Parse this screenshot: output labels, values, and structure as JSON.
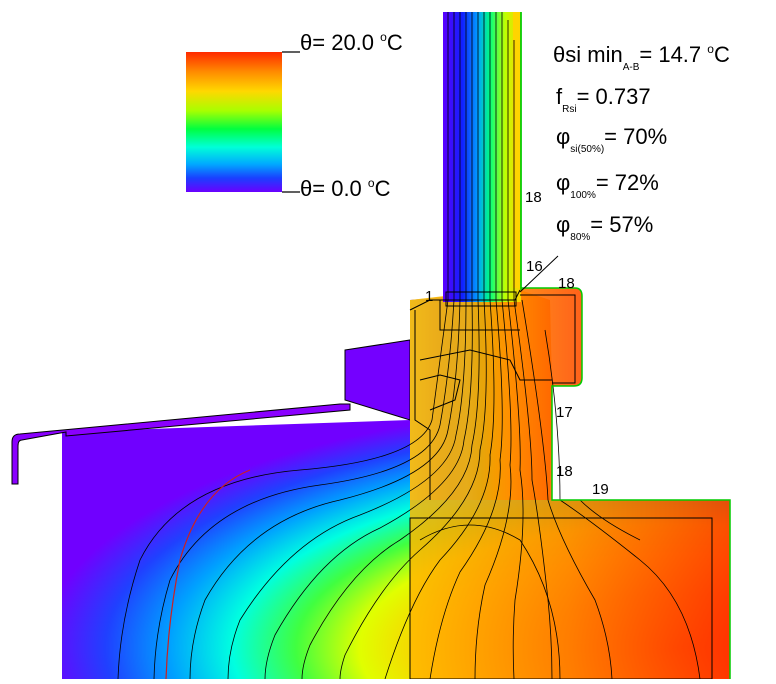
{
  "legend": {
    "max_label": "θ = 20.0 °C",
    "min_label": "θ = 0.0 °C",
    "max_parts": {
      "sym": "θ",
      "eq": "= 20.0 ",
      "deg": "o",
      "unit": "C"
    },
    "min_parts": {
      "sym": "θ",
      "eq": "= 0.0 ",
      "deg": "o",
      "unit": "C"
    },
    "gradient_colors": [
      "#ff2a00",
      "#ff8a00",
      "#ffd800",
      "#a8ff00",
      "#00ff40",
      "#00ffd8",
      "#00aaff",
      "#1a40ff",
      "#6a00ff"
    ]
  },
  "results": {
    "theta_si": {
      "sym": "θ",
      "main": "si min",
      "sub": "A-B",
      "value": "= 14.7 ",
      "deg": "o",
      "unit": "C"
    },
    "f_rsi": {
      "main": "f",
      "sub": "Rsi",
      "value": "= 0.737"
    },
    "phi_si50": {
      "main": "φ",
      "sub": "si(50%)",
      "value": "= 70%"
    },
    "phi_100": {
      "main": "φ",
      "sub": "100%",
      "value": "= 72%"
    },
    "phi_80": {
      "main": "φ",
      "sub": "80%",
      "value": "= 57%"
    }
  },
  "isotherm_labels": [
    {
      "text": "18"
    },
    {
      "text": "16"
    },
    {
      "text": "18"
    },
    {
      "text": "1"
    },
    {
      "text": "17"
    },
    {
      "text": "18"
    },
    {
      "text": "19"
    }
  ],
  "colors": {
    "cold": "#7a00ff",
    "hot": "#ff2200",
    "outline_green": "#00cc00",
    "isoline": "#000000",
    "red_line": "#cc2020"
  }
}
